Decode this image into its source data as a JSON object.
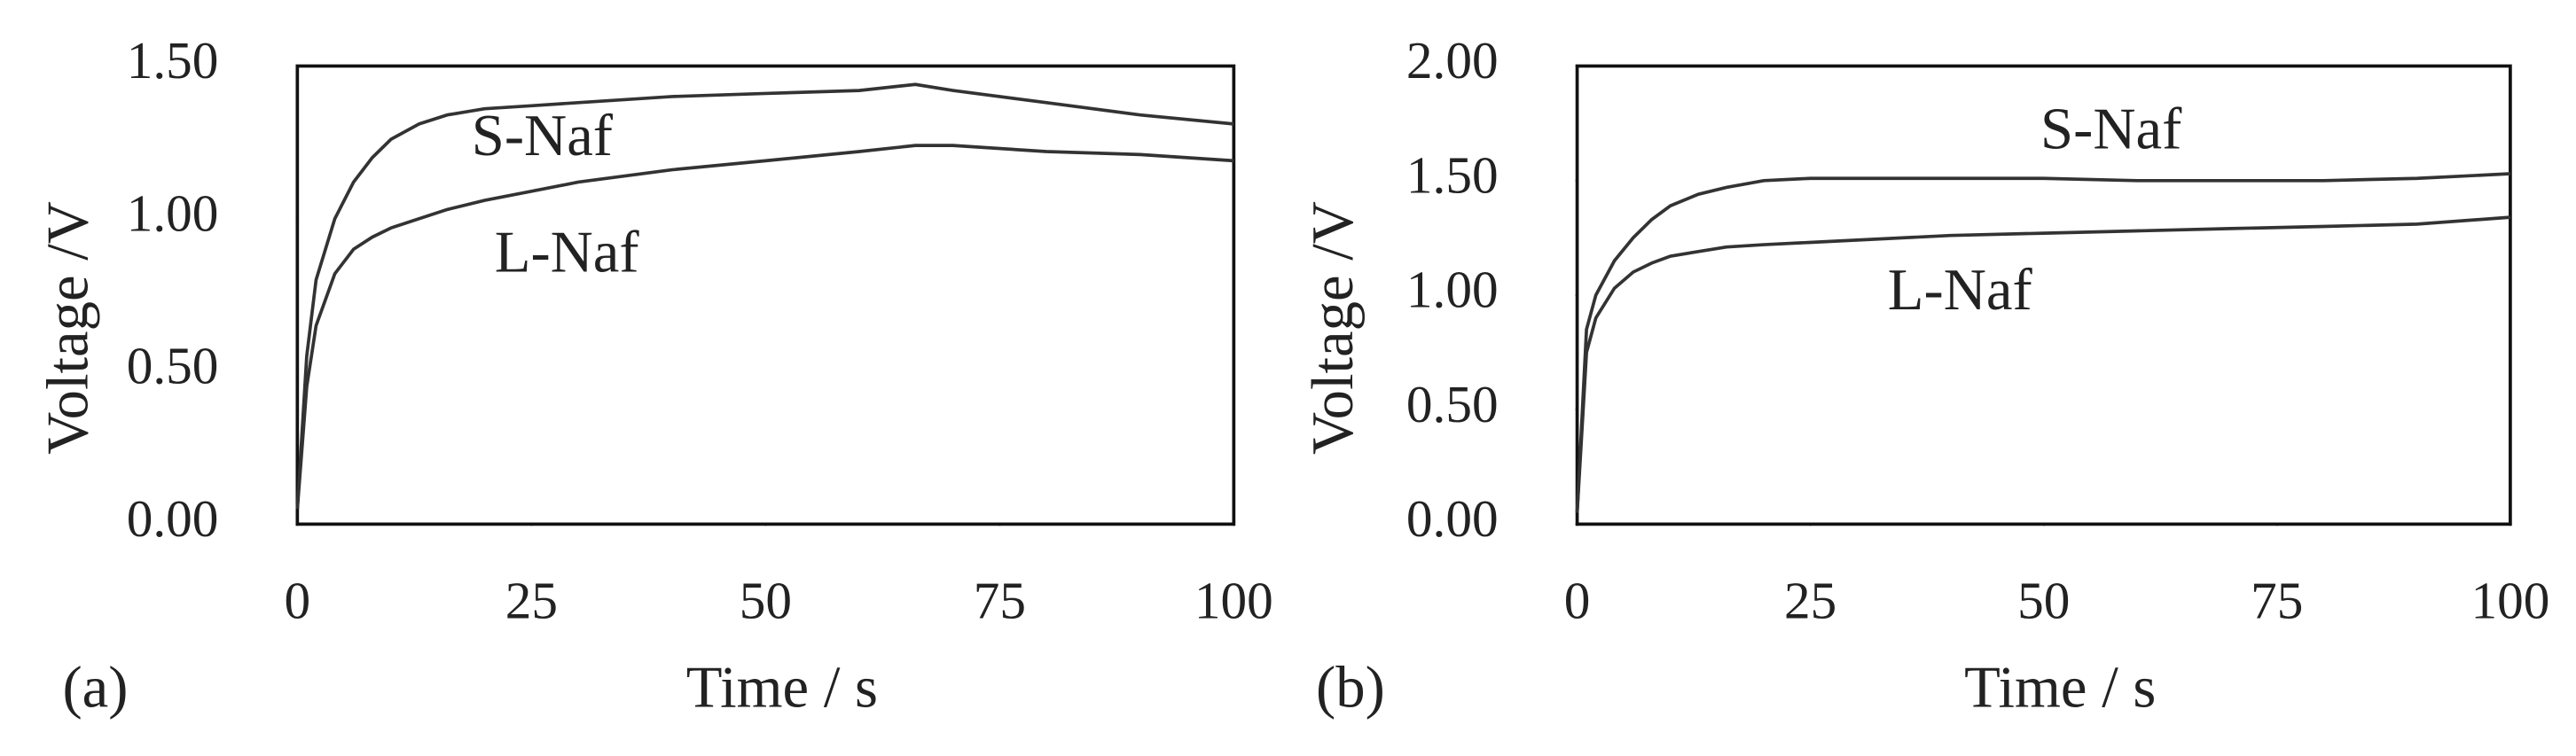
{
  "charts": [
    {
      "chart_data": {
        "type": "line",
        "panel": "(a)",
        "x_label": "Time / s",
        "y_label": "Voltage /V",
        "x": [
          0,
          1,
          2,
          4,
          6,
          8,
          10,
          13,
          16,
          20,
          25,
          30,
          40,
          50,
          60,
          66,
          70,
          80,
          90,
          100
        ],
        "series": [
          {
            "name": "S-Naf",
            "color": "#333333",
            "values": [
              0.05,
              0.55,
              0.8,
              1.0,
              1.12,
              1.2,
              1.26,
              1.31,
              1.34,
              1.36,
              1.37,
              1.38,
              1.4,
              1.41,
              1.42,
              1.44,
              1.42,
              1.38,
              1.34,
              1.31
            ]
          },
          {
            "name": "L-Naf",
            "color": "#333333",
            "values": [
              0.05,
              0.45,
              0.65,
              0.82,
              0.9,
              0.94,
              0.97,
              1.0,
              1.03,
              1.06,
              1.09,
              1.12,
              1.16,
              1.19,
              1.22,
              1.24,
              1.24,
              1.22,
              1.21,
              1.19
            ]
          }
        ],
        "xlim": [
          0,
          100
        ],
        "xticks": [
          0,
          25,
          50,
          75,
          100
        ],
        "ylim": [
          0,
          1.5
        ],
        "yticks": [
          {
            "value": 0,
            "label": "0.00"
          },
          {
            "value": 0.5,
            "label": "0.50"
          },
          {
            "value": 1,
            "label": "1.00"
          },
          {
            "value": 1.5,
            "label": "1.50"
          }
        ]
      }
    },
    {
      "chart_data": {
        "type": "line",
        "panel": "(b)",
        "x_label": "Time / s",
        "y_label": "Voltage /V",
        "x": [
          0,
          1,
          2,
          4,
          6,
          8,
          10,
          13,
          16,
          20,
          25,
          30,
          40,
          50,
          60,
          70,
          80,
          90,
          100
        ],
        "series": [
          {
            "name": "S-Naf",
            "color": "#333333",
            "values": [
              0.05,
              0.85,
              1.0,
              1.15,
              1.25,
              1.33,
              1.39,
              1.44,
              1.47,
              1.5,
              1.51,
              1.51,
              1.51,
              1.51,
              1.5,
              1.5,
              1.5,
              1.51,
              1.53
            ]
          },
          {
            "name": "L-Naf",
            "color": "#333333",
            "values": [
              0.05,
              0.75,
              0.9,
              1.03,
              1.1,
              1.14,
              1.17,
              1.19,
              1.21,
              1.22,
              1.23,
              1.24,
              1.26,
              1.27,
              1.28,
              1.29,
              1.3,
              1.31,
              1.34
            ]
          }
        ],
        "xlim": [
          0,
          100
        ],
        "xticks": [
          0,
          25,
          50,
          75,
          100
        ],
        "ylim": [
          0,
          2
        ],
        "yticks": [
          {
            "value": 0,
            "label": "0.00"
          },
          {
            "value": 0.5,
            "label": "0.50"
          },
          {
            "value": 1,
            "label": "1.00"
          },
          {
            "value": 1.5,
            "label": "1.50"
          },
          {
            "value": 2,
            "label": "2.00"
          }
        ]
      }
    }
  ]
}
